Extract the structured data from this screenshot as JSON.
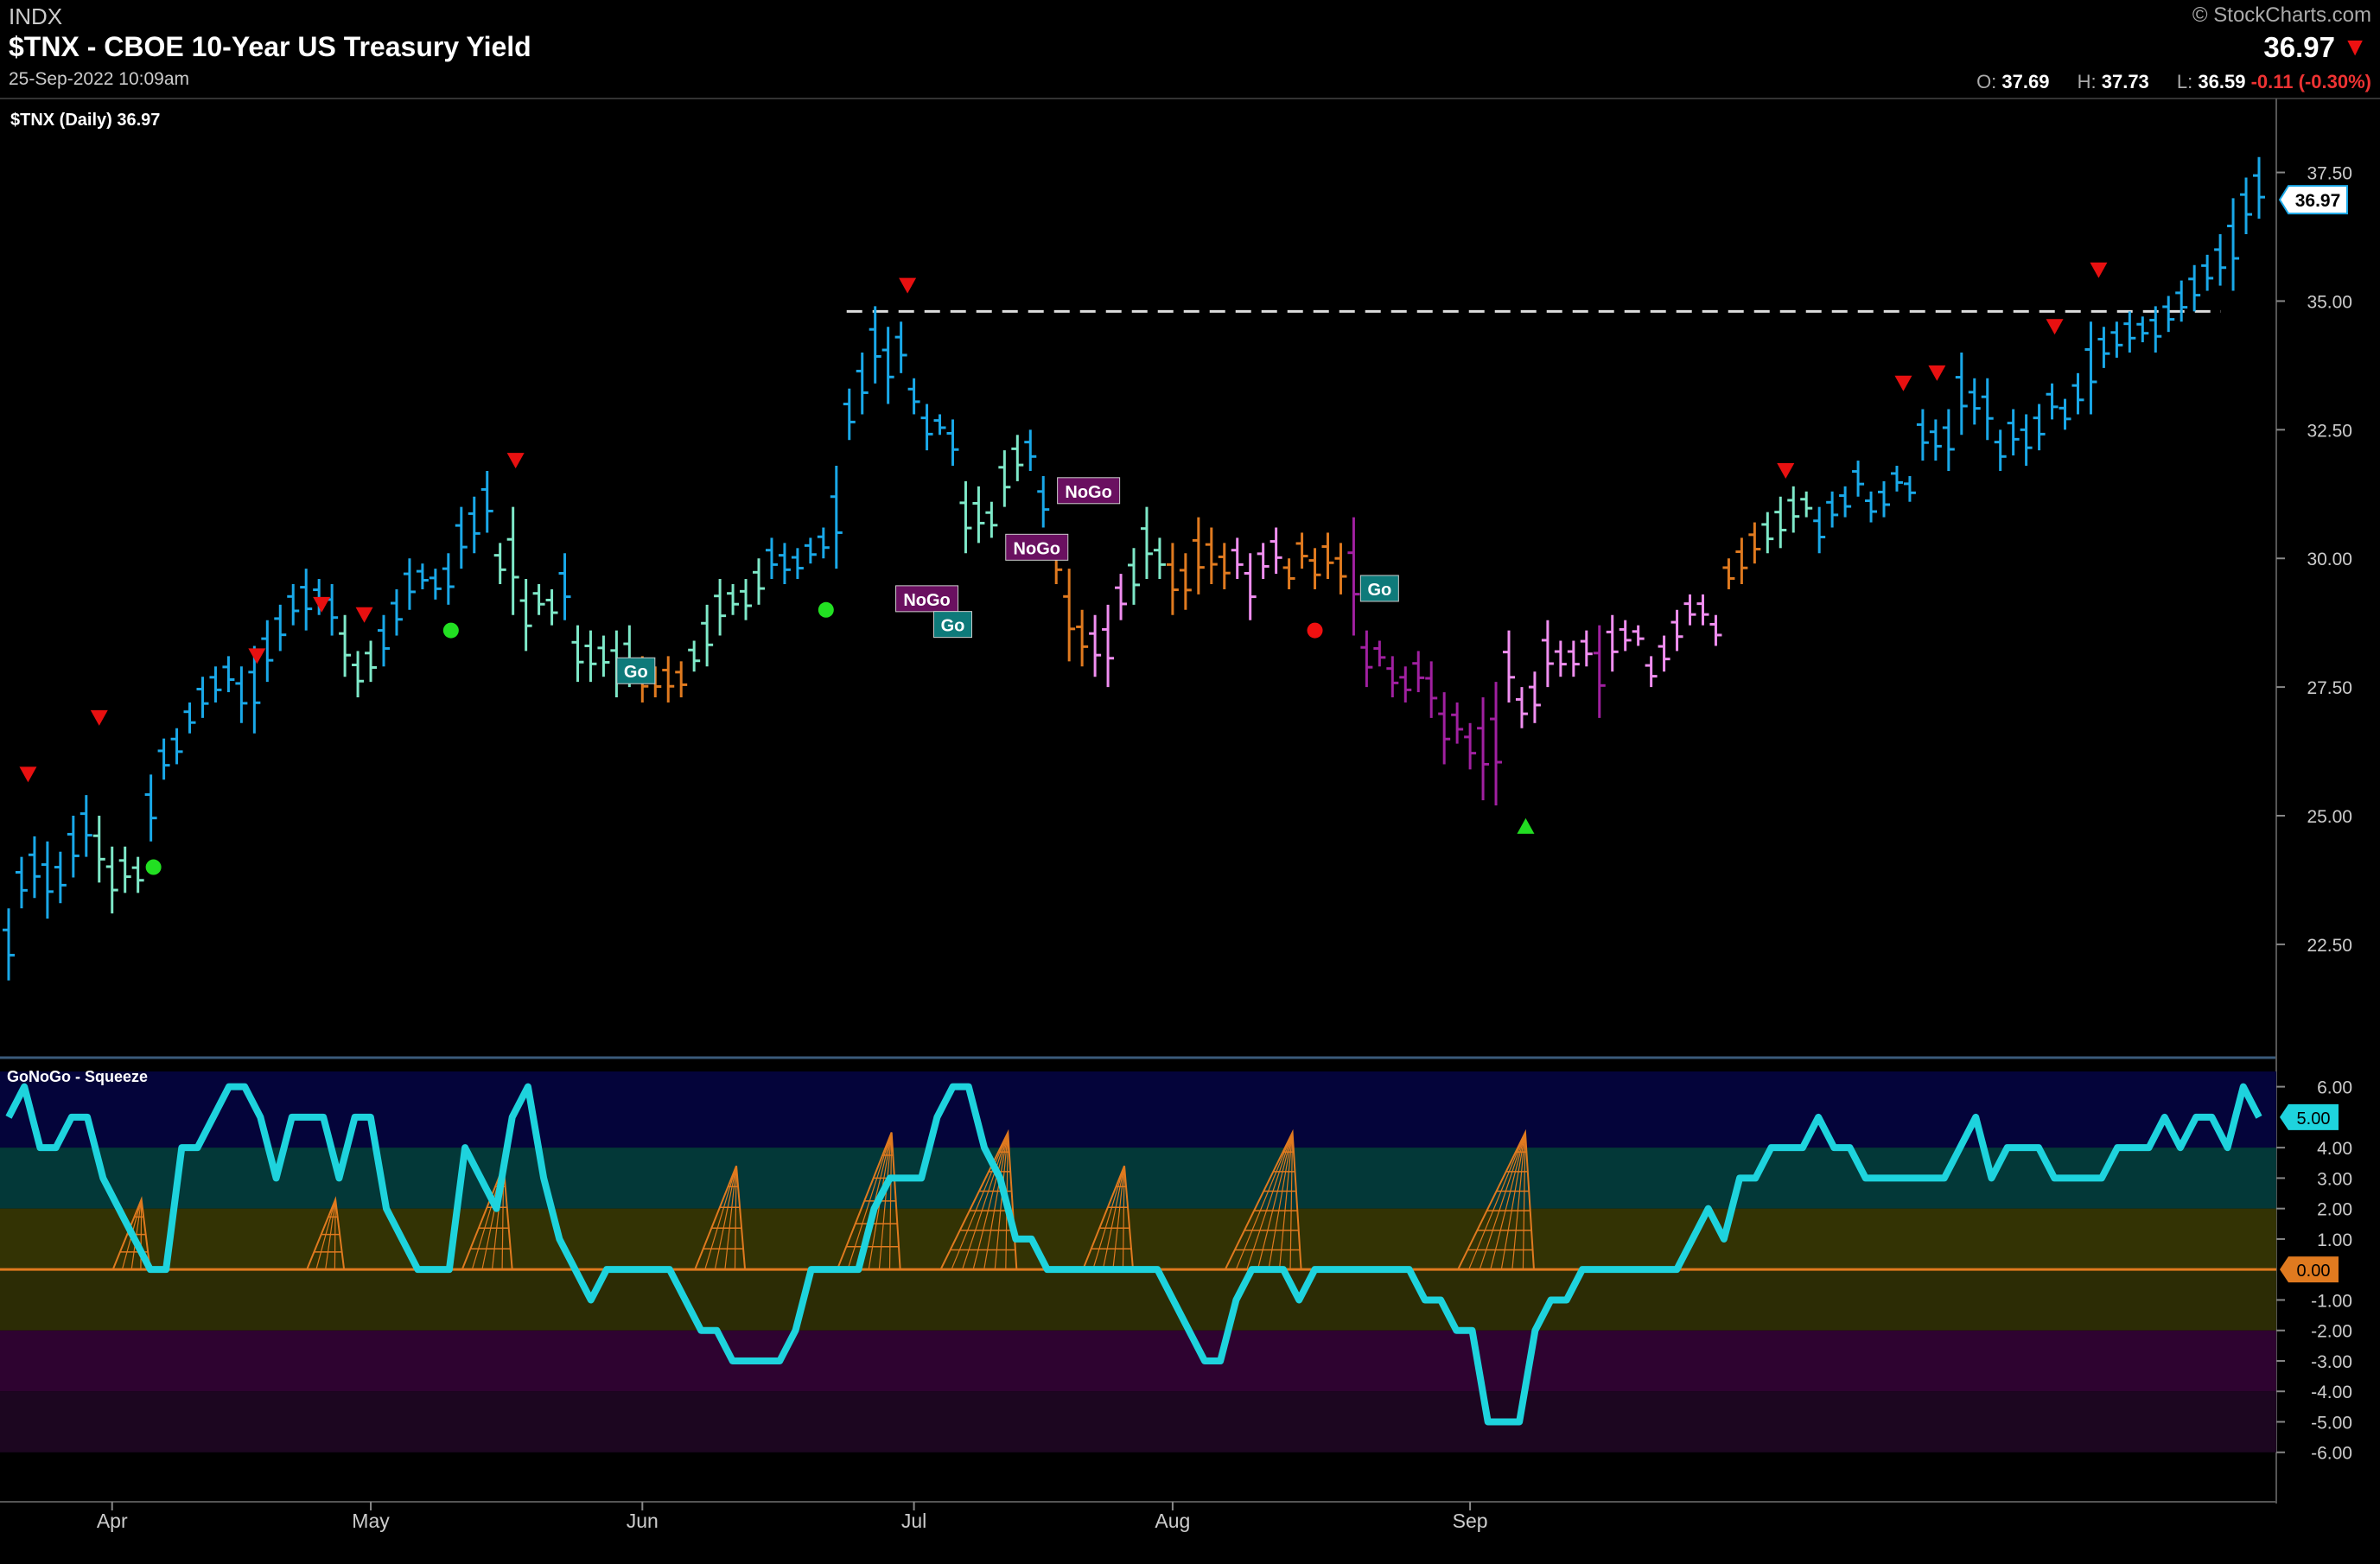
{
  "header": {
    "exchange": "INDX",
    "title": "$TNX - CBOE 10-Year US Treasury Yield",
    "date": "25-Sep-2022 10:09am",
    "brand": "© StockCharts.com",
    "last_price": "36.97",
    "open_label": "O:",
    "open": "37.69",
    "high_label": "H:",
    "high": "37.73",
    "low_label": "L:",
    "low": "36.59",
    "change": "-0.11 (-0.30%)",
    "down_color": "#e11111"
  },
  "price_panel": {
    "legend": "$TNX (Daily) 36.97",
    "price_tag": "36.97",
    "resistance_level": 34.8,
    "yticks": [
      "37.50",
      "35.00",
      "32.50",
      "30.00",
      "27.50",
      "25.00",
      "22.50"
    ],
    "ytick_values": [
      37.5,
      35.0,
      32.5,
      30.0,
      27.5,
      25.0,
      22.5
    ],
    "ylim": [
      20.5,
      38.5
    ],
    "xticks": [
      "Apr",
      "May",
      "Jun",
      "Jul",
      "Aug",
      "Sep"
    ],
    "xtick_index": [
      8,
      28,
      49,
      70,
      90,
      113
    ],
    "colors": {
      "strong_go": "#19a8e8",
      "weak_go": "#7ee8c8",
      "amber": "#e07a1f",
      "weak_nogo": "#f08ef0",
      "strong_nogo": "#a020a0"
    },
    "labels": [
      {
        "text": "Go",
        "type": "go",
        "i": 48.5,
        "y": 27.8
      },
      {
        "text": "NoGo",
        "type": "nogo",
        "i": 71,
        "y": 29.2
      },
      {
        "text": "Go",
        "type": "go",
        "i": 73,
        "y": 28.7
      },
      {
        "text": "NoGo",
        "type": "nogo",
        "i": 79.5,
        "y": 30.2
      },
      {
        "text": "NoGo",
        "type": "nogo",
        "i": 83.5,
        "y": 31.3
      },
      {
        "text": "Go",
        "type": "go",
        "i": 106,
        "y": 29.4
      }
    ]
  },
  "squeeze_panel": {
    "legend": "GoNoGo - Squeeze",
    "value_tag": "5.00",
    "zero_tag": "0.00",
    "yticks": [
      "6.00",
      "4.00",
      "3.00",
      "2.00",
      "1.00",
      "-1.00",
      "-2.00",
      "-3.00",
      "-4.00",
      "-5.00",
      "-6.00"
    ],
    "ytick_values": [
      6,
      4,
      3,
      2,
      1,
      -1,
      -2,
      -3,
      -4,
      -5,
      -6
    ],
    "ylim": [
      -7,
      6.5
    ]
  },
  "chart_data": {
    "type": "ohlc",
    "title": "$TNX - CBOE 10-Year US Treasury Yield",
    "period": "Daily",
    "bars": [
      [
        0,
        23.2,
        21.8,
        "sg"
      ],
      [
        1,
        24.2,
        23.2,
        "sg"
      ],
      [
        2,
        24.6,
        23.4,
        "sg"
      ],
      [
        3,
        24.5,
        23.0,
        "sg"
      ],
      [
        4,
        24.3,
        23.3,
        "sg"
      ],
      [
        5,
        25.0,
        23.8,
        "sg"
      ],
      [
        6,
        25.4,
        24.2,
        "sg"
      ],
      [
        7,
        25.0,
        23.7,
        "wg"
      ],
      [
        8,
        24.4,
        23.1,
        "wg"
      ],
      [
        9,
        24.4,
        23.5,
        "wg"
      ],
      [
        10,
        24.2,
        23.5,
        "wg"
      ],
      [
        11,
        25.8,
        24.5,
        "sg"
      ],
      [
        12,
        26.5,
        25.7,
        "sg"
      ],
      [
        13,
        26.7,
        26.0,
        "sg"
      ],
      [
        14,
        27.2,
        26.6,
        "sg"
      ],
      [
        15,
        27.7,
        26.9,
        "sg"
      ],
      [
        16,
        27.9,
        27.2,
        "sg"
      ],
      [
        17,
        28.1,
        27.4,
        "sg"
      ],
      [
        18,
        27.9,
        26.8,
        "sg"
      ],
      [
        19,
        28.3,
        26.6,
        "sg"
      ],
      [
        20,
        28.8,
        27.6,
        "sg"
      ],
      [
        21,
        29.1,
        28.2,
        "sg"
      ],
      [
        22,
        29.5,
        28.7,
        "sg"
      ],
      [
        23,
        29.8,
        28.6,
        "sg"
      ],
      [
        24,
        29.6,
        28.9,
        "sg"
      ],
      [
        25,
        29.5,
        28.5,
        "sg"
      ],
      [
        26,
        28.9,
        27.7,
        "wg"
      ],
      [
        27,
        28.2,
        27.3,
        "wg"
      ],
      [
        28,
        28.4,
        27.6,
        "wg"
      ],
      [
        29,
        28.9,
        27.9,
        "sg"
      ],
      [
        30,
        29.4,
        28.5,
        "sg"
      ],
      [
        31,
        30.0,
        29.0,
        "sg"
      ],
      [
        32,
        29.9,
        29.4,
        "sg"
      ],
      [
        33,
        29.8,
        29.2,
        "sg"
      ],
      [
        34,
        30.1,
        29.1,
        "sg"
      ],
      [
        35,
        31.0,
        29.8,
        "sg"
      ],
      [
        36,
        31.2,
        30.1,
        "sg"
      ],
      [
        37,
        31.7,
        30.5,
        "sg"
      ],
      [
        38,
        30.3,
        29.5,
        "wg"
      ],
      [
        39,
        31.0,
        28.9,
        "wg"
      ],
      [
        40,
        29.6,
        28.2,
        "wg"
      ],
      [
        41,
        29.5,
        28.9,
        "wg"
      ],
      [
        42,
        29.4,
        28.7,
        "wg"
      ],
      [
        43,
        30.1,
        28.8,
        "sg"
      ],
      [
        44,
        28.7,
        27.6,
        "wg"
      ],
      [
        45,
        28.6,
        27.6,
        "wg"
      ],
      [
        46,
        28.5,
        27.7,
        "wg"
      ],
      [
        47,
        28.6,
        27.3,
        "wg"
      ],
      [
        48,
        28.7,
        27.5,
        "wg"
      ],
      [
        49,
        28.1,
        27.2,
        "am"
      ],
      [
        50,
        27.9,
        27.3,
        "am"
      ],
      [
        51,
        28.1,
        27.2,
        "am"
      ],
      [
        52,
        28.0,
        27.3,
        "am"
      ],
      [
        53,
        28.4,
        27.8,
        "wg"
      ],
      [
        54,
        29.1,
        27.9,
        "wg"
      ],
      [
        55,
        29.6,
        28.5,
        "wg"
      ],
      [
        56,
        29.5,
        28.9,
        "wg"
      ],
      [
        57,
        29.6,
        28.8,
        "wg"
      ],
      [
        58,
        30.0,
        29.1,
        "wg"
      ],
      [
        59,
        30.4,
        29.6,
        "sg"
      ],
      [
        60,
        30.3,
        29.5,
        "sg"
      ],
      [
        61,
        30.2,
        29.6,
        "sg"
      ],
      [
        62,
        30.4,
        29.9,
        "sg"
      ],
      [
        63,
        30.6,
        30.0,
        "sg"
      ],
      [
        64,
        31.8,
        29.8,
        "sg"
      ],
      [
        65,
        33.3,
        32.3,
        "sg"
      ],
      [
        66,
        34.0,
        32.8,
        "sg"
      ],
      [
        67,
        34.9,
        33.4,
        "sg"
      ],
      [
        68,
        34.5,
        33.0,
        "sg"
      ],
      [
        69,
        34.6,
        33.6,
        "sg"
      ],
      [
        70,
        33.5,
        32.8,
        "sg"
      ],
      [
        71,
        33.0,
        32.1,
        "sg"
      ],
      [
        72,
        32.8,
        32.4,
        "sg"
      ],
      [
        73,
        32.7,
        31.8,
        "sg"
      ],
      [
        74,
        31.5,
        30.1,
        "wg"
      ],
      [
        75,
        31.4,
        30.3,
        "wg"
      ],
      [
        76,
        31.1,
        30.4,
        "wg"
      ],
      [
        77,
        32.1,
        31.0,
        "wg"
      ],
      [
        78,
        32.4,
        31.5,
        "wg"
      ],
      [
        79,
        32.5,
        31.7,
        "sg"
      ],
      [
        80,
        31.6,
        30.6,
        "sg"
      ],
      [
        81,
        30.3,
        29.5,
        "am"
      ],
      [
        82,
        29.8,
        28.0,
        "am"
      ],
      [
        83,
        29.0,
        27.9,
        "am"
      ],
      [
        84,
        28.9,
        27.7,
        "wn"
      ],
      [
        85,
        29.1,
        27.5,
        "wn"
      ],
      [
        86,
        29.7,
        28.8,
        "wn"
      ],
      [
        87,
        30.2,
        29.1,
        "wg"
      ],
      [
        88,
        31.0,
        29.6,
        "wg"
      ],
      [
        89,
        30.4,
        29.6,
        "wg"
      ],
      [
        90,
        30.3,
        28.9,
        "am"
      ],
      [
        91,
        30.1,
        29.0,
        "am"
      ],
      [
        92,
        30.8,
        29.3,
        "am"
      ],
      [
        93,
        30.6,
        29.5,
        "am"
      ],
      [
        94,
        30.3,
        29.4,
        "am"
      ],
      [
        95,
        30.4,
        29.6,
        "wn"
      ],
      [
        96,
        30.1,
        28.8,
        "wn"
      ],
      [
        97,
        30.3,
        29.6,
        "wn"
      ],
      [
        98,
        30.6,
        29.7,
        "wn"
      ],
      [
        99,
        30.0,
        29.4,
        "am"
      ],
      [
        100,
        30.5,
        29.8,
        "am"
      ],
      [
        101,
        30.2,
        29.4,
        "am"
      ],
      [
        102,
        30.5,
        29.6,
        "am"
      ],
      [
        103,
        30.3,
        29.3,
        "am"
      ],
      [
        104,
        30.8,
        28.5,
        "sn"
      ],
      [
        105,
        28.6,
        27.5,
        "sn"
      ],
      [
        106,
        28.4,
        27.9,
        "sn"
      ],
      [
        107,
        28.1,
        27.3,
        "sn"
      ],
      [
        108,
        27.9,
        27.2,
        "sn"
      ],
      [
        109,
        28.2,
        27.4,
        "sn"
      ],
      [
        110,
        28.0,
        26.9,
        "sn"
      ],
      [
        111,
        27.4,
        26.0,
        "sn"
      ],
      [
        112,
        27.2,
        26.4,
        "sn"
      ],
      [
        113,
        26.8,
        25.9,
        "sn"
      ],
      [
        114,
        27.3,
        25.3,
        "sn"
      ],
      [
        115,
        27.6,
        25.2,
        "sn"
      ],
      [
        116,
        28.6,
        27.2,
        "wn"
      ],
      [
        117,
        27.5,
        26.7,
        "wn"
      ],
      [
        118,
        27.8,
        26.8,
        "wn"
      ],
      [
        119,
        28.8,
        27.5,
        "wn"
      ],
      [
        120,
        28.4,
        27.7,
        "wn"
      ],
      [
        121,
        28.4,
        27.7,
        "wn"
      ],
      [
        122,
        28.6,
        27.9,
        "wn"
      ],
      [
        123,
        28.7,
        26.9,
        "sn"
      ],
      [
        124,
        28.9,
        27.8,
        "wn"
      ],
      [
        125,
        28.8,
        28.2,
        "wn"
      ],
      [
        126,
        28.7,
        28.3,
        "wn"
      ],
      [
        127,
        28.1,
        27.5,
        "wn"
      ],
      [
        128,
        28.5,
        27.8,
        "wn"
      ],
      [
        129,
        29.0,
        28.2,
        "wn"
      ],
      [
        130,
        29.3,
        28.7,
        "wn"
      ],
      [
        131,
        29.3,
        28.7,
        "wn"
      ],
      [
        132,
        28.9,
        28.3,
        "wn"
      ],
      [
        133,
        30.0,
        29.4,
        "am"
      ],
      [
        134,
        30.4,
        29.5,
        "am"
      ],
      [
        135,
        30.7,
        29.9,
        "am"
      ],
      [
        136,
        30.9,
        30.1,
        "wg"
      ],
      [
        137,
        31.2,
        30.2,
        "wg"
      ],
      [
        138,
        31.4,
        30.5,
        "wg"
      ],
      [
        139,
        31.3,
        30.8,
        "wg"
      ],
      [
        140,
        31.0,
        30.1,
        "sg"
      ],
      [
        141,
        31.3,
        30.6,
        "sg"
      ],
      [
        142,
        31.4,
        30.8,
        "sg"
      ],
      [
        143,
        31.9,
        31.2,
        "sg"
      ],
      [
        144,
        31.3,
        30.7,
        "sg"
      ],
      [
        145,
        31.5,
        30.8,
        "sg"
      ],
      [
        146,
        31.8,
        31.3,
        "sg"
      ],
      [
        147,
        31.6,
        31.1,
        "sg"
      ],
      [
        148,
        32.9,
        31.9,
        "sg"
      ],
      [
        149,
        32.7,
        31.9,
        "sg"
      ],
      [
        150,
        32.9,
        31.7,
        "sg"
      ],
      [
        151,
        34.0,
        32.4,
        "sg"
      ],
      [
        152,
        33.5,
        32.6,
        "sg"
      ],
      [
        153,
        33.5,
        32.3,
        "sg"
      ],
      [
        154,
        32.5,
        31.7,
        "sg"
      ],
      [
        155,
        32.9,
        32.0,
        "sg"
      ],
      [
        156,
        32.8,
        31.8,
        "sg"
      ],
      [
        157,
        33.0,
        32.1,
        "sg"
      ],
      [
        158,
        33.4,
        32.7,
        "sg"
      ],
      [
        159,
        33.1,
        32.5,
        "sg"
      ],
      [
        160,
        33.6,
        32.8,
        "sg"
      ],
      [
        161,
        34.6,
        32.8,
        "sg"
      ],
      [
        162,
        34.5,
        33.7,
        "sg"
      ],
      [
        163,
        34.6,
        33.9,
        "sg"
      ],
      [
        164,
        34.8,
        34.0,
        "sg"
      ],
      [
        165,
        34.7,
        34.2,
        "sg"
      ],
      [
        166,
        34.9,
        34.0,
        "sg"
      ],
      [
        167,
        35.1,
        34.4,
        "sg"
      ],
      [
        168,
        35.4,
        34.6,
        "sg"
      ],
      [
        169,
        35.7,
        34.8,
        "sg"
      ],
      [
        170,
        35.9,
        35.2,
        "sg"
      ],
      [
        171,
        36.3,
        35.3,
        "sg"
      ],
      [
        172,
        37.0,
        35.2,
        "sg"
      ],
      [
        173,
        37.4,
        36.3,
        "sg"
      ],
      [
        174,
        37.8,
        36.6,
        "sg"
      ]
    ],
    "go_dots": [
      [
        11.2,
        24.0
      ],
      [
        34.2,
        28.6
      ],
      [
        63.2,
        29.0
      ]
    ],
    "nogo_dots": [
      [
        101,
        28.6
      ]
    ],
    "sell_triangles": [
      [
        1.5,
        25.8
      ],
      [
        7,
        26.9
      ],
      [
        19.2,
        28.1
      ],
      [
        24.2,
        29.1
      ],
      [
        27.5,
        28.9
      ],
      [
        39.2,
        31.9
      ],
      [
        69.5,
        35.3
      ],
      [
        137.4,
        31.7
      ],
      [
        146.5,
        33.4
      ],
      [
        149.1,
        33.6
      ],
      [
        158.2,
        34.5
      ],
      [
        161.6,
        35.6
      ]
    ],
    "buy_triangles": [
      [
        117.3,
        24.8
      ]
    ],
    "squeeze_values": [
      5,
      6,
      4,
      4,
      5,
      5,
      3,
      2,
      1,
      0,
      0,
      4,
      4,
      5,
      6,
      6,
      5,
      3,
      5,
      5,
      5,
      3,
      5,
      5,
      2,
      1,
      0,
      0,
      0,
      4,
      3,
      2,
      5,
      6,
      3,
      1,
      0,
      -1,
      0,
      0,
      0,
      0,
      0,
      -1,
      -2,
      -2,
      -3,
      -3,
      -3,
      -3,
      -2,
      0,
      0,
      0,
      0,
      2,
      3,
      3,
      3,
      5,
      6,
      6,
      4,
      3,
      1,
      1,
      0,
      0,
      0,
      0,
      0,
      0,
      0,
      0,
      -1,
      -2,
      -3,
      -3,
      -1,
      0,
      0,
      0,
      -1,
      0,
      0,
      0,
      0,
      0,
      0,
      0,
      -1,
      -1,
      -2,
      -2,
      -5,
      -5,
      -5,
      -2,
      -1,
      -1,
      0,
      0,
      0,
      0,
      0,
      0,
      0,
      1,
      2,
      1,
      3,
      3,
      4,
      4,
      4,
      5,
      4,
      4,
      3,
      3,
      3,
      3,
      3,
      3,
      4,
      5,
      3,
      4,
      4,
      4,
      3,
      3,
      3,
      3,
      4,
      4,
      4,
      5,
      4,
      5,
      5,
      4,
      6,
      5
    ],
    "squeeze_cones": [
      [
        9,
        10
      ],
      [
        24,
        25
      ],
      [
        36,
        38
      ],
      [
        54,
        56
      ],
      [
        65,
        68
      ],
      [
        73,
        77
      ],
      [
        84,
        86
      ],
      [
        95,
        99
      ],
      [
        113,
        117
      ]
    ]
  }
}
